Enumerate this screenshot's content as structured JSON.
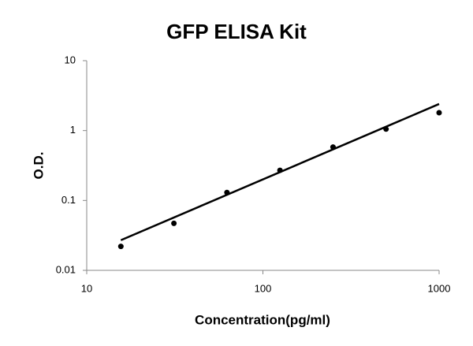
{
  "chart_data": {
    "type": "scatter",
    "title": "GFP ELISA Kit",
    "x_label": "Concentration(pg/ml)",
    "y_label": "O.D.",
    "x_log": true,
    "y_log": true,
    "x": [
      15.625,
      31.25,
      62.5,
      125,
      250,
      500,
      1000
    ],
    "values": [
      0.022,
      0.047,
      0.13,
      0.27,
      0.58,
      1.05,
      1.8
    ],
    "color": "#000000",
    "trendline": {
      "x": [
        15.625,
        1000
      ],
      "values": [
        0.027,
        2.4
      ],
      "color": "#000000"
    },
    "xlim": [
      10,
      1000
    ],
    "xticks": [
      10,
      100,
      1000
    ],
    "ylim": [
      0.01,
      10
    ],
    "yticks": [
      0.01,
      0.1,
      1,
      10
    ]
  }
}
